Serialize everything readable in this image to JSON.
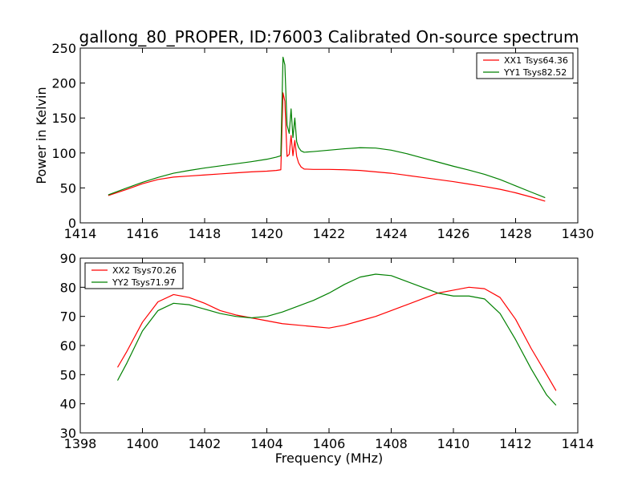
{
  "chart_data": [
    {
      "type": "line",
      "title": "gallong_80_PROPER, ID:76003 Calibrated On-source spectrum",
      "xlabel": "",
      "ylabel": "Power in Kelvin",
      "xlim": [
        1414,
        1430
      ],
      "ylim": [
        0,
        250
      ],
      "xticks": [
        "1414",
        "1416",
        "1418",
        "1420",
        "1422",
        "1424",
        "1426",
        "1428",
        "1430"
      ],
      "yticks": [
        "0",
        "50",
        "100",
        "150",
        "200",
        "250"
      ],
      "grid": false,
      "legend_position": "top-right",
      "series": [
        {
          "name": "XX1 Tsys64.36",
          "color": "#ff0000",
          "x": [
            1414.9,
            1415.5,
            1416.0,
            1416.5,
            1417.0,
            1417.5,
            1418.0,
            1418.5,
            1419.0,
            1419.5,
            1420.0,
            1420.3,
            1420.45,
            1420.52,
            1420.58,
            1420.65,
            1420.72,
            1420.78,
            1420.84,
            1420.9,
            1420.96,
            1421.02,
            1421.1,
            1421.2,
            1421.5,
            1422.0,
            1422.5,
            1423.0,
            1423.5,
            1424.0,
            1424.5,
            1425.0,
            1425.5,
            1426.0,
            1426.5,
            1427.0,
            1427.5,
            1428.0,
            1428.5,
            1428.95
          ],
          "y": [
            39,
            48,
            56,
            62,
            65.5,
            67,
            68.5,
            70,
            71.5,
            73,
            74,
            75,
            76,
            186,
            174,
            95,
            98,
            125,
            96,
            118,
            95,
            86,
            80,
            77,
            76.5,
            76.5,
            76,
            75,
            73,
            71,
            68,
            65,
            62,
            59,
            55.5,
            52,
            48,
            43,
            37,
            31
          ]
        },
        {
          "name": "YY1 Tsys82.52",
          "color": "#008000",
          "x": [
            1414.9,
            1415.5,
            1416.0,
            1416.5,
            1417.0,
            1417.5,
            1418.0,
            1418.5,
            1419.0,
            1419.5,
            1420.0,
            1420.3,
            1420.45,
            1420.52,
            1420.58,
            1420.65,
            1420.72,
            1420.78,
            1420.84,
            1420.9,
            1420.96,
            1421.02,
            1421.1,
            1421.2,
            1421.5,
            1422.0,
            1422.5,
            1423.0,
            1423.5,
            1424.0,
            1424.5,
            1425.0,
            1425.5,
            1426.0,
            1426.5,
            1427.0,
            1427.5,
            1428.0,
            1428.5,
            1428.95
          ],
          "y": [
            40,
            50,
            58,
            65,
            71,
            75,
            78.5,
            81.5,
            84.5,
            87.5,
            91,
            94,
            96,
            237,
            226,
            140,
            128,
            163,
            122,
            150,
            116,
            108,
            103,
            101,
            102,
            104,
            106,
            107.5,
            107,
            104,
            99,
            93,
            87,
            81,
            75.5,
            69.5,
            62,
            53,
            44,
            36
          ]
        }
      ]
    },
    {
      "type": "line",
      "title": "",
      "xlabel": "Frequency (MHz)",
      "ylabel": "",
      "xlim": [
        1398,
        1414
      ],
      "ylim": [
        30,
        90
      ],
      "xticks": [
        "1398",
        "1400",
        "1402",
        "1404",
        "1406",
        "1408",
        "1410",
        "1412",
        "1414"
      ],
      "yticks": [
        "30",
        "40",
        "50",
        "60",
        "70",
        "80",
        "90"
      ],
      "grid": false,
      "legend_position": "top-left",
      "series": [
        {
          "name": "XX2 Tsys70.26",
          "color": "#ff0000",
          "x": [
            1399.2,
            1399.5,
            1400.0,
            1400.5,
            1401.0,
            1401.5,
            1402.0,
            1402.5,
            1403.0,
            1403.5,
            1404.0,
            1404.5,
            1405.0,
            1405.5,
            1406.0,
            1406.5,
            1407.0,
            1407.5,
            1408.0,
            1408.5,
            1409.0,
            1409.5,
            1410.0,
            1410.5,
            1411.0,
            1411.5,
            1412.0,
            1412.5,
            1413.0,
            1413.3
          ],
          "y": [
            52.5,
            58,
            68,
            75,
            77.5,
            76.5,
            74.5,
            72,
            70.5,
            69.5,
            68.5,
            67.5,
            67,
            66.5,
            66,
            67,
            68.5,
            70,
            72,
            74,
            76,
            78,
            79,
            80,
            79.5,
            76.5,
            69,
            59,
            50,
            44.5
          ]
        },
        {
          "name": "YY2 Tsys71.97",
          "color": "#008000",
          "x": [
            1399.2,
            1399.5,
            1400.0,
            1400.5,
            1401.0,
            1401.5,
            1402.0,
            1402.5,
            1403.0,
            1403.5,
            1404.0,
            1404.5,
            1405.0,
            1405.5,
            1406.0,
            1406.5,
            1407.0,
            1407.5,
            1408.0,
            1408.5,
            1409.0,
            1409.5,
            1410.0,
            1410.5,
            1411.0,
            1411.5,
            1412.0,
            1412.5,
            1413.0,
            1413.3
          ],
          "y": [
            48,
            54,
            65,
            72,
            74.5,
            74,
            72.5,
            71,
            70,
            69.5,
            70,
            71.5,
            73.5,
            75.5,
            78,
            81,
            83.5,
            84.5,
            84,
            82,
            80,
            78,
            77,
            77,
            76,
            71,
            62,
            52,
            43,
            39.5
          ]
        }
      ]
    }
  ]
}
